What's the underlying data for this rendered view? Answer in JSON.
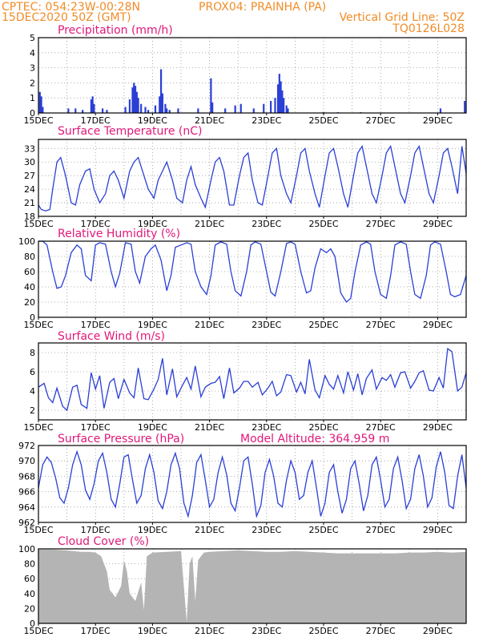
{
  "header": {
    "line1_left": "CPTEC:  054:23W-00:28N",
    "line1_right": "PROX04: PRAINHA (PA)",
    "line2_left": "15DEC2020 50Z (GMT)",
    "line2_right": "Vertical Grid Line: 50Z",
    "line3_right": "TQ0126L028"
  },
  "colors": {
    "header": "#f08c28",
    "title": "#e0187a",
    "series": "#2a3fd6",
    "cloud": "#b4b4b4"
  },
  "x_ticks": [
    "15DEC",
    "17DEC",
    "19DEC",
    "21DEC",
    "23DEC",
    "25DEC",
    "27DEC",
    "29DEC"
  ],
  "chart_data": [
    {
      "id": "precip",
      "type": "bar",
      "title": "Precipitation (mm/h)",
      "ylim": [
        0,
        5
      ],
      "yticks": [
        0,
        1,
        2,
        3,
        4,
        5
      ],
      "xlim": [
        0,
        15
      ],
      "x": [
        0.05,
        0.1,
        0.15,
        1.05,
        1.3,
        1.55,
        1.85,
        1.9,
        1.95,
        2.25,
        2.4,
        3.05,
        3.2,
        3.3,
        3.35,
        3.4,
        3.45,
        3.5,
        3.6,
        3.75,
        3.85,
        4.1,
        4.25,
        4.3,
        4.35,
        4.45,
        4.5,
        4.6,
        4.9,
        5.6,
        6.05,
        6.1,
        6.55,
        6.9,
        7.1,
        7.55,
        7.9,
        8.15,
        8.3,
        8.4,
        8.45,
        8.5,
        8.55,
        8.6,
        8.7,
        8.75,
        10.0,
        10.5,
        11.3,
        14.1,
        14.95
      ],
      "values": [
        1.4,
        1.1,
        0.4,
        0.3,
        0.3,
        0.2,
        0.9,
        1.1,
        0.6,
        0.3,
        0.2,
        0.4,
        0.9,
        1.7,
        2.0,
        1.8,
        1.4,
        1.0,
        0.6,
        0.4,
        0.2,
        0.5,
        1.1,
        2.9,
        1.3,
        0.6,
        0.3,
        0.2,
        0.3,
        0.3,
        2.3,
        0.7,
        0.3,
        0.5,
        0.6,
        0.3,
        0.6,
        0.8,
        1.0,
        1.9,
        2.6,
        2.1,
        1.5,
        1.0,
        0.5,
        0.3,
        0.05,
        0.05,
        0.05,
        0.3,
        0.8
      ]
    },
    {
      "id": "temp",
      "type": "line",
      "title": "Surface Temperature (nC)",
      "ylim": [
        18,
        35
      ],
      "yticks": [
        18,
        21,
        24,
        27,
        30,
        33
      ],
      "xlim": [
        0,
        15
      ],
      "x": [
        0,
        0.1,
        0.25,
        0.4,
        0.5,
        0.65,
        0.78,
        0.95,
        1.15,
        1.3,
        1.45,
        1.65,
        1.8,
        1.95,
        2.15,
        2.35,
        2.5,
        2.65,
        2.8,
        3.0,
        3.2,
        3.35,
        3.5,
        3.7,
        3.85,
        4.05,
        4.2,
        4.35,
        4.5,
        4.7,
        4.85,
        5.05,
        5.2,
        5.35,
        5.5,
        5.7,
        5.85,
        6.05,
        6.2,
        6.35,
        6.5,
        6.7,
        6.85,
        7.05,
        7.2,
        7.35,
        7.5,
        7.7,
        7.85,
        8.05,
        8.2,
        8.35,
        8.5,
        8.7,
        8.85,
        9.05,
        9.2,
        9.35,
        9.5,
        9.7,
        9.85,
        10.05,
        10.2,
        10.35,
        10.5,
        10.7,
        10.85,
        11.05,
        11.2,
        11.35,
        11.5,
        11.7,
        11.85,
        12.05,
        12.2,
        12.35,
        12.5,
        12.7,
        12.85,
        13.05,
        13.2,
        13.35,
        13.5,
        13.7,
        13.85,
        14.05,
        14.2,
        14.35,
        14.5,
        14.7,
        14.85,
        15.0
      ],
      "values": [
        20.5,
        19.5,
        19.2,
        19.5,
        24,
        30,
        31,
        27,
        21,
        20.5,
        25,
        28,
        28.5,
        24,
        21,
        23,
        27,
        28,
        26,
        22,
        28,
        30,
        31,
        27,
        24,
        22,
        26,
        28,
        30,
        26,
        22,
        21,
        26,
        29,
        25,
        22,
        20,
        26,
        30,
        31,
        28,
        20.5,
        20.5,
        27,
        31,
        32,
        26,
        21,
        20.5,
        27,
        32,
        33,
        27,
        23,
        21,
        27,
        32,
        33,
        28,
        23,
        20,
        27,
        32,
        33,
        29,
        23,
        20,
        27,
        32,
        33.5,
        29,
        23,
        21,
        27,
        32,
        33.5,
        29,
        23,
        21,
        27,
        32,
        33.5,
        29,
        23,
        21,
        27,
        32,
        33,
        29,
        23,
        33.5,
        27.5
      ]
    },
    {
      "id": "rh",
      "type": "line",
      "title": "Relative Humidity (%)",
      "ylim": [
        0,
        100
      ],
      "yticks": [
        0,
        20,
        40,
        60,
        80,
        100
      ],
      "xlim": [
        0,
        15
      ],
      "x": [
        0,
        0.15,
        0.3,
        0.5,
        0.65,
        0.8,
        0.95,
        1.15,
        1.35,
        1.5,
        1.65,
        1.85,
        2.0,
        2.15,
        2.35,
        2.55,
        2.7,
        2.85,
        3.05,
        3.25,
        3.4,
        3.55,
        3.75,
        3.95,
        4.1,
        4.3,
        4.5,
        4.65,
        4.8,
        5.0,
        5.2,
        5.35,
        5.5,
        5.7,
        5.9,
        6.05,
        6.2,
        6.4,
        6.6,
        6.75,
        6.9,
        7.1,
        7.3,
        7.45,
        7.6,
        7.8,
        8.0,
        8.15,
        8.3,
        8.5,
        8.7,
        8.85,
        9.0,
        9.2,
        9.4,
        9.55,
        9.7,
        9.9,
        10.1,
        10.25,
        10.4,
        10.6,
        10.8,
        10.95,
        11.1,
        11.3,
        11.5,
        11.65,
        11.8,
        12.0,
        12.2,
        12.35,
        12.5,
        12.7,
        12.9,
        13.05,
        13.2,
        13.4,
        13.6,
        13.75,
        13.9,
        14.1,
        14.3,
        14.45,
        14.6,
        14.8,
        15.0
      ],
      "values": [
        100,
        100,
        95,
        60,
        38,
        40,
        55,
        85,
        95,
        90,
        55,
        48,
        95,
        98,
        96,
        60,
        40,
        58,
        98,
        96,
        60,
        45,
        80,
        90,
        95,
        75,
        35,
        55,
        92,
        95,
        98,
        96,
        60,
        40,
        30,
        55,
        95,
        99,
        96,
        60,
        35,
        28,
        60,
        95,
        99,
        96,
        60,
        33,
        28,
        60,
        97,
        99,
        96,
        60,
        32,
        35,
        65,
        90,
        85,
        90,
        80,
        32,
        20,
        25,
        60,
        95,
        99,
        96,
        60,
        30,
        25,
        55,
        95,
        99,
        96,
        60,
        30,
        25,
        55,
        95,
        99,
        96,
        60,
        30,
        27,
        30,
        55
      ]
    },
    {
      "id": "wind",
      "type": "line",
      "title": "Surface Wind (m/s)",
      "ylim": [
        1,
        9
      ],
      "yticks": [
        2,
        4,
        6,
        8
      ],
      "xlim": [
        0,
        15
      ],
      "x": [
        0,
        0.2,
        0.35,
        0.5,
        0.65,
        0.85,
        1.0,
        1.2,
        1.35,
        1.5,
        1.7,
        1.85,
        2.0,
        2.15,
        2.3,
        2.5,
        2.65,
        2.8,
        3.0,
        3.2,
        3.35,
        3.5,
        3.7,
        3.85,
        4.05,
        4.2,
        4.35,
        4.5,
        4.7,
        4.85,
        5.05,
        5.2,
        5.35,
        5.5,
        5.7,
        5.85,
        6.05,
        6.2,
        6.35,
        6.5,
        6.7,
        6.85,
        7.05,
        7.2,
        7.35,
        7.5,
        7.7,
        7.85,
        8.05,
        8.2,
        8.35,
        8.5,
        8.7,
        8.85,
        9.05,
        9.2,
        9.35,
        9.5,
        9.7,
        9.85,
        10.05,
        10.2,
        10.35,
        10.5,
        10.7,
        10.85,
        11.05,
        11.2,
        11.35,
        11.5,
        11.7,
        11.85,
        12.05,
        12.2,
        12.35,
        12.5,
        12.7,
        12.85,
        13.05,
        13.2,
        13.35,
        13.5,
        13.7,
        13.85,
        14.05,
        14.2,
        14.35,
        14.5,
        14.7,
        14.85,
        15.0
      ],
      "values": [
        4.4,
        4.8,
        3.3,
        2.8,
        4.3,
        2.4,
        2.0,
        4.4,
        4.6,
        2.6,
        2.2,
        5.9,
        4.2,
        5.6,
        2.2,
        4.9,
        5.3,
        3.2,
        5.2,
        3.8,
        3.3,
        6.4,
        3.2,
        3.1,
        4.2,
        5.2,
        7.4,
        3.6,
        6.3,
        3.4,
        4.6,
        5.4,
        4.2,
        6.6,
        3.4,
        4.4,
        4.8,
        4.9,
        5.5,
        3.2,
        6.4,
        3.8,
        4.3,
        5.0,
        5.0,
        4.4,
        4.9,
        3.6,
        4.3,
        5.0,
        3.5,
        3.9,
        5.7,
        5.6,
        3.9,
        4.9,
        3.7,
        7.3,
        4.1,
        3.3,
        5.6,
        4.7,
        4.2,
        5.6,
        3.8,
        6.0,
        4.1,
        5.8,
        3.6,
        5.3,
        6.2,
        4.2,
        5.4,
        5.1,
        5.7,
        4.4,
        5.9,
        6.0,
        4.3,
        5.0,
        5.9,
        6.1,
        4.1,
        4.0,
        5.4,
        4.3,
        8.4,
        8.1,
        4.0,
        4.4,
        5.9
      ]
    },
    {
      "id": "pressure",
      "type": "line",
      "title": "Surface Pressure (hPa)",
      "subtitle": "Model Altitude: 364.959 m",
      "ylim": [
        962,
        972
      ],
      "yticks": [
        962,
        964,
        966,
        968,
        970,
        972
      ],
      "xlim": [
        0,
        15
      ],
      "x": [
        0,
        0.15,
        0.3,
        0.45,
        0.6,
        0.75,
        0.9,
        1.05,
        1.2,
        1.35,
        1.5,
        1.65,
        1.8,
        1.95,
        2.1,
        2.25,
        2.4,
        2.55,
        2.7,
        2.85,
        3.0,
        3.15,
        3.3,
        3.45,
        3.6,
        3.75,
        3.9,
        4.05,
        4.2,
        4.35,
        4.5,
        4.65,
        4.8,
        4.95,
        5.1,
        5.25,
        5.4,
        5.55,
        5.7,
        5.85,
        6.0,
        6.15,
        6.3,
        6.45,
        6.6,
        6.75,
        6.9,
        7.05,
        7.2,
        7.35,
        7.5,
        7.65,
        7.8,
        7.95,
        8.1,
        8.25,
        8.4,
        8.55,
        8.7,
        8.85,
        9.0,
        9.15,
        9.3,
        9.45,
        9.6,
        9.75,
        9.9,
        10.05,
        10.2,
        10.35,
        10.5,
        10.65,
        10.8,
        10.95,
        11.1,
        11.25,
        11.4,
        11.55,
        11.7,
        11.85,
        12.0,
        12.15,
        12.3,
        12.45,
        12.6,
        12.75,
        12.9,
        13.05,
        13.2,
        13.35,
        13.5,
        13.65,
        13.8,
        13.95,
        14.1,
        14.25,
        14.4,
        14.55,
        14.7,
        14.85,
        15.0
      ],
      "values": [
        966.5,
        969.5,
        970.5,
        969.8,
        967.8,
        965.2,
        964.5,
        966.5,
        969.5,
        971.2,
        969.5,
        966.2,
        965.0,
        967.0,
        970.0,
        971.0,
        968.5,
        965.0,
        964.0,
        967.0,
        970.5,
        970.8,
        967.5,
        964.5,
        965.5,
        969.0,
        970.8,
        968.5,
        964.8,
        963.8,
        966.0,
        969.5,
        971.0,
        969.0,
        964.5,
        962.8,
        965.5,
        969.8,
        970.8,
        967.5,
        964.0,
        965.0,
        968.5,
        970.5,
        968.2,
        964.5,
        963.5,
        966.5,
        970.0,
        970.5,
        967.0,
        962.8,
        964.2,
        968.5,
        970.2,
        968.0,
        964.5,
        964.0,
        967.5,
        970.0,
        968.5,
        965.0,
        965.5,
        968.5,
        970.0,
        966.5,
        962.8,
        964.5,
        968.5,
        969.5,
        966.0,
        963.2,
        965.0,
        969.0,
        970.0,
        967.0,
        963.5,
        965.5,
        969.5,
        970.5,
        967.5,
        964.0,
        965.0,
        969.0,
        970.5,
        967.5,
        963.8,
        965.0,
        969.0,
        970.8,
        968.0,
        964.0,
        965.2,
        969.2,
        971.2,
        968.5,
        964.2,
        963.8,
        968.0,
        970.8,
        966.5
      ]
    },
    {
      "id": "cloud",
      "type": "area",
      "title": "Cloud Cover (%)",
      "ylim": [
        0,
        100
      ],
      "yticks": [
        0,
        20,
        40,
        60,
        80,
        100
      ],
      "xlim": [
        0,
        15
      ],
      "x": [
        0,
        0.5,
        1.0,
        1.5,
        1.8,
        2.0,
        2.2,
        2.4,
        2.5,
        2.7,
        2.9,
        3.0,
        3.1,
        3.2,
        3.4,
        3.6,
        3.7,
        3.8,
        4.0,
        4.5,
        5.0,
        5.2,
        5.3,
        5.4,
        5.5,
        5.6,
        5.8,
        6.0,
        6.5,
        7.0,
        7.5,
        8.0,
        8.5,
        9.0,
        9.5,
        10.0,
        10.5,
        11.0,
        11.5,
        12.0,
        12.5,
        13.0,
        13.5,
        14.0,
        14.5,
        15.0
      ],
      "values": [
        99,
        99,
        98,
        96,
        96,
        95,
        90,
        70,
        45,
        35,
        50,
        85,
        70,
        40,
        30,
        55,
        18,
        90,
        95,
        96,
        97,
        2,
        80,
        90,
        30,
        85,
        95,
        96,
        97,
        98,
        97,
        96,
        96,
        97,
        96,
        95,
        94,
        94,
        94,
        94,
        94,
        95,
        95,
        96,
        95,
        96
      ]
    }
  ]
}
